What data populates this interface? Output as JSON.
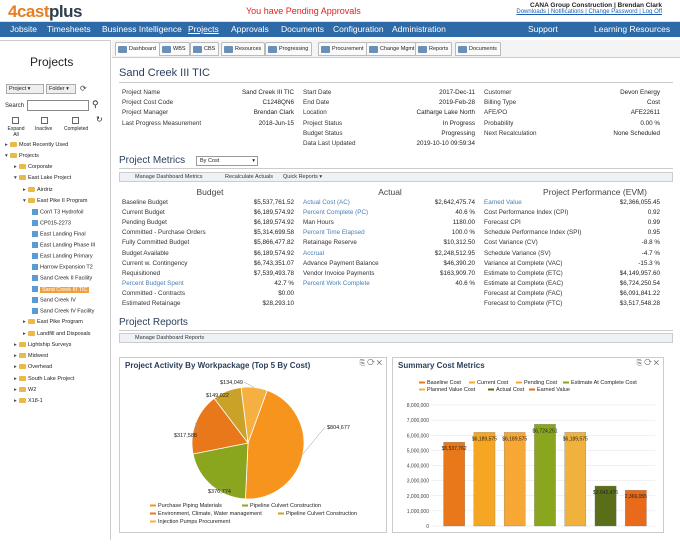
{
  "header": {
    "logo_brand": "4cast",
    "logo_suffix": "plus",
    "alert": "You have Pending Approvals",
    "company_line": "CANA Group Construction | Brendan Clark",
    "links": "Downloads | Notifications | Change Password | Log Off"
  },
  "nav": {
    "items": [
      "Jobsite",
      "Timesheets",
      "Business Intelligence",
      "Projects",
      "Approvals",
      "Documents",
      "Configuration",
      "Administration"
    ],
    "active": "Projects",
    "support": "Support",
    "learning": "Learning Resources"
  },
  "tabs": [
    "Dashboard",
    "WBS",
    "CBS",
    "Resources",
    "Progressing",
    "Procurement",
    "Change Mgmt",
    "Reports",
    "Documents"
  ],
  "left": {
    "title": "Projects",
    "project_btn": "Project",
    "folder_btn": "Folder",
    "search_label": "Search",
    "expand": "Expand All",
    "inactive": "Inactive",
    "completed": "Completed",
    "tree": [
      {
        "label": "Most Recently Used",
        "lvl": 0,
        "type": "folder",
        "open": false
      },
      {
        "label": "Projects",
        "lvl": 0,
        "type": "folder",
        "open": true
      },
      {
        "label": "Corporate",
        "lvl": 1,
        "type": "folder",
        "open": false
      },
      {
        "label": "East Lake Project",
        "lvl": 1,
        "type": "folder",
        "open": true
      },
      {
        "label": "Airdriz",
        "lvl": 2,
        "type": "folder",
        "open": false
      },
      {
        "label": "East Pike II Program",
        "lvl": 2,
        "type": "folder",
        "open": true
      },
      {
        "label": "Con'l T3 Hydrofoil",
        "lvl": 3,
        "type": "project"
      },
      {
        "label": "CP015-2273",
        "lvl": 3,
        "type": "project"
      },
      {
        "label": "East Landing Final",
        "lvl": 3,
        "type": "project"
      },
      {
        "label": "East Landing Phase III",
        "lvl": 3,
        "type": "project"
      },
      {
        "label": "East Landing Primary",
        "lvl": 3,
        "type": "project"
      },
      {
        "label": "Harrow Expansion T2",
        "lvl": 3,
        "type": "project"
      },
      {
        "label": "Sand Creek II Facility",
        "lvl": 3,
        "type": "project"
      },
      {
        "label": "Sand Creek III TIC",
        "lvl": 3,
        "type": "project",
        "selected": true
      },
      {
        "label": "Sand Creek IV",
        "lvl": 3,
        "type": "project"
      },
      {
        "label": "Sand Creek IV Facility",
        "lvl": 3,
        "type": "project"
      },
      {
        "label": "East Pike Program",
        "lvl": 2,
        "type": "folder",
        "open": false
      },
      {
        "label": "Landfill and Disposals",
        "lvl": 2,
        "type": "folder",
        "open": false
      },
      {
        "label": "Lightship Surveys",
        "lvl": 1,
        "type": "folder",
        "open": false
      },
      {
        "label": "Midwest",
        "lvl": 1,
        "type": "folder",
        "open": false
      },
      {
        "label": "Overhead",
        "lvl": 1,
        "type": "folder",
        "open": false
      },
      {
        "label": "South Lake Project",
        "lvl": 1,
        "type": "folder",
        "open": false
      },
      {
        "label": "W2",
        "lvl": 1,
        "type": "folder",
        "open": false
      },
      {
        "label": "X18-1",
        "lvl": 1,
        "type": "folder",
        "open": false
      }
    ]
  },
  "project": {
    "title": "Sand Creek III TIC",
    "col1": [
      [
        "Project Name",
        "Sand Creek III TIC"
      ],
      [
        "Project Cost Code",
        "C1248QN6"
      ],
      [
        "Project Manager",
        "Brendan Clark"
      ],
      [
        "Last Progress Measurement",
        "2018-Jun-15"
      ]
    ],
    "col2": [
      [
        "Start Date",
        "2017-Dec-11"
      ],
      [
        "End Date",
        "2019-Feb-28"
      ],
      [
        "Location",
        "Catharge Lake North"
      ],
      [
        "Project Status",
        "In Progress"
      ],
      [
        "Budget Status",
        "Progressing"
      ],
      [
        "Data Last Updated",
        "2019-10-10 09:59:34"
      ]
    ],
    "col3": [
      [
        "Customer",
        "Devon Energy"
      ],
      [
        "Billing Type",
        "Cost"
      ],
      [
        "AFE/PO",
        "AFE22611"
      ],
      [
        "Probability",
        "0.00 %"
      ],
      [
        "Next Recalculation",
        "None Scheduled"
      ]
    ]
  },
  "metrics": {
    "title": "Project Metrics",
    "select": "By Cost",
    "buttons": [
      "Manage Dashboard Metrics",
      "Recalculate Actuals",
      "Quick Reports"
    ],
    "budget_title": "Budget",
    "actual_title": "Actual",
    "perf_title": "Project Performance (EVM)",
    "budget": [
      [
        "Baseline Budget",
        "$5,537,761.52"
      ],
      [
        "Current Budget",
        "$6,189,574.92"
      ],
      [
        "Pending Budget",
        "$6,189,574.92"
      ],
      [
        "Committed - Purchase Orders",
        "$5,314,699.58"
      ],
      [
        "Fully Committed Budget",
        "$5,866,477.82"
      ],
      [
        "Budget Available",
        "$6,189,574.92"
      ],
      [
        "Current w. Contingency",
        "$6,743,351.07"
      ],
      [
        "Requisitioned",
        "$7,539,493.78"
      ],
      [
        "Percent Budget Spent",
        "42.7 %"
      ],
      [
        "Committed - Contracts",
        "$0.00"
      ],
      [
        "Estimated Retainage",
        "$28,293.10"
      ]
    ],
    "actual": [
      [
        "Actual Cost (AC)",
        "$2,642,475.74"
      ],
      [
        "Percent Complete (PC)",
        "40.6 %"
      ],
      [
        "Man Hours",
        "1180.00"
      ],
      [
        "Percent Time Elapsed",
        "100.0 %"
      ],
      [
        "Retainage Reserve",
        "$10,312.50"
      ],
      [
        "Accrual",
        "$2,248,512.95"
      ],
      [
        "Advance Payment Balance",
        "$46,390.20"
      ],
      [
        "Vendor Invoice Payments",
        "$163,909.70"
      ],
      [
        "Percent Work Complete",
        "40.6 %"
      ]
    ],
    "perf": [
      [
        "Earned Value",
        "$2,366,055.45"
      ],
      [
        "Cost Performance Index (CPI)",
        "0.92"
      ],
      [
        "Forecast CPI",
        "0.99"
      ],
      [
        "Schedule Performance Index (SPI)",
        "0.95"
      ],
      [
        "Cost Variance (CV)",
        "-8.8 %"
      ],
      [
        "Schedule Variance (SV)",
        "-4.7 %"
      ],
      [
        "Variance at Complete (VAC)",
        "-15.3 %"
      ],
      [
        "Estimate to Complete (ETC)",
        "$4,149,957.60"
      ],
      [
        "Estimate at Complete (EAC)",
        "$6,724,250.54"
      ],
      [
        "Forecast at Complete (FAC)",
        "$6,091,841.22"
      ],
      [
        "Forecast to Complete (FTC)",
        "$3,517,548.28"
      ]
    ]
  },
  "reports": {
    "title": "Project Reports",
    "button": "Manage Dashboard Reports"
  },
  "chart_data": [
    {
      "type": "pie",
      "title": "Project Activity By Workpackage (Top 5 By Cost)",
      "values": [
        804677,
        376774,
        317588,
        149022,
        134049
      ],
      "labels": [
        "$804,677",
        "$376,774",
        "$317,588",
        "$149,022",
        "$134,049"
      ],
      "colors": [
        "#f7941d",
        "#8aa61e",
        "#e8781a",
        "#c9a227",
        "#f5b041"
      ],
      "legend": [
        "Purchase Piping Materials",
        "Pipeline Culvert Construction",
        "Environment, Climate, Water management",
        "Pipeline Culvert Construction",
        "Injection Pumps Procurement"
      ]
    },
    {
      "type": "bar",
      "title": "Summary Cost Metrics",
      "series": [
        {
          "name": "Baseline Cost",
          "value": 5537762,
          "label": "$5,537,762",
          "color": "#e8781a"
        },
        {
          "name": "Current Cost",
          "value": 6189575,
          "label": "$6,189,575",
          "color": "#f5a623"
        },
        {
          "name": "Pending Cost",
          "value": 6189575,
          "label": "$6,189,575",
          "color": "#f7a733"
        },
        {
          "name": "Estimate At Complete Cost",
          "value": 6724251,
          "label": "$6,724,251",
          "color": "#8aa61e"
        },
        {
          "name": "Planned Value Cost",
          "value": 6189575,
          "label": "$6,189,575",
          "color": "#f0b23d"
        },
        {
          "name": "Actual Cost",
          "value": 2642476,
          "label": "$2,642,476",
          "color": "#5a6e1a"
        },
        {
          "name": "Earned Value",
          "value": 2366055,
          "label": "2,366,055",
          "color": "#e86a1a"
        }
      ],
      "ylim": [
        0,
        8000000
      ],
      "yticks": [
        "0",
        "1,000,000",
        "2,000,000",
        "3,000,000",
        "4,000,000",
        "5,000,000",
        "6,000,000",
        "7,000,000",
        "8,000,000"
      ]
    }
  ]
}
